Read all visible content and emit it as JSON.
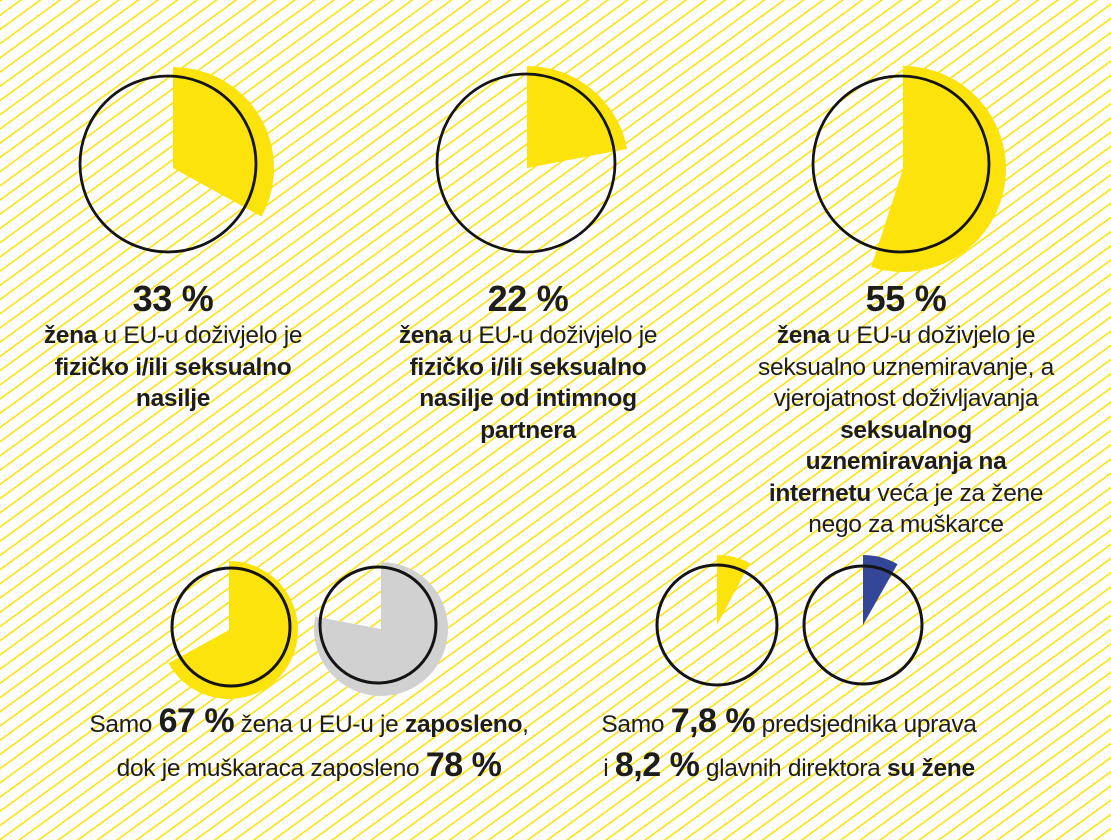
{
  "colors": {
    "yellow": "#FCE30B",
    "gray": "#D1D1D1",
    "blue": "#334697",
    "outline": "#141414",
    "stripe": "#FFE41C",
    "text": "#1D1D1B"
  },
  "chart_data": [
    {
      "id": "physical-sexual-violence",
      "type": "pie",
      "value_pct": 33,
      "rest_pct": 67,
      "color": "#FCE30B",
      "label": "33 % žena u EU-u doživjelo je fizičko i/ili seksualno nasilje"
    },
    {
      "id": "partner-violence",
      "type": "pie",
      "value_pct": 22,
      "rest_pct": 78,
      "color": "#FCE30B",
      "label": "22 % žena u EU-u doživjelo je fizičko i/ili seksualno nasilje od intimnog partnera"
    },
    {
      "id": "sexual-harassment",
      "type": "pie",
      "value_pct": 55,
      "rest_pct": 45,
      "color": "#FCE30B",
      "label": "55 % žena u EU-u doživjelo je seksualno uznemiravanje"
    },
    {
      "id": "employment-women",
      "type": "pie",
      "value_pct": 67,
      "rest_pct": 33,
      "color": "#FCE30B",
      "label": "Samo 67 % žena u EU-u je zaposleno"
    },
    {
      "id": "employment-men",
      "type": "pie",
      "value_pct": 78,
      "rest_pct": 22,
      "color": "#D1D1D1",
      "label": "Muškaraca je zaposleno 78 %"
    },
    {
      "id": "board-chairs-women",
      "type": "pie",
      "value_pct": 7.8,
      "rest_pct": 92.2,
      "color": "#FCE30B",
      "label": "Samo 7,8 % predsjednika uprava su žene"
    },
    {
      "id": "ceo-women",
      "type": "pie",
      "value_pct": 8.2,
      "rest_pct": 91.8,
      "color": "#334697",
      "label": "8,2 % glavnih direktora su žene"
    }
  ],
  "panels": {
    "top": [
      {
        "pct": "33 %",
        "lines": [
          [
            {
              "t": "žena",
              "b": true
            },
            {
              "t": " u EU-u doživjelo je"
            }
          ],
          [
            {
              "t": "fizičko i/ili seksualno",
              "b": true
            }
          ],
          [
            {
              "t": "nasilje",
              "b": true
            }
          ]
        ]
      },
      {
        "pct": "22 %",
        "lines": [
          [
            {
              "t": "žena",
              "b": true
            },
            {
              "t": " u EU-u doživjelo je"
            }
          ],
          [
            {
              "t": "fizičko i/ili seksualno",
              "b": true
            }
          ],
          [
            {
              "t": "nasilje od intimnog",
              "b": true
            }
          ],
          [
            {
              "t": "partnera",
              "b": true
            }
          ]
        ]
      },
      {
        "pct": "55 %",
        "lines": [
          [
            {
              "t": "žena",
              "b": true
            },
            {
              "t": " u EU-u doživjelo je"
            }
          ],
          [
            {
              "t": "seksualno uznemiravanje, a"
            }
          ],
          [
            {
              "t": "vjerojatnost doživljavanja"
            }
          ],
          [
            {
              "t": "seksualnog",
              "b": true
            }
          ],
          [
            {
              "t": "uznemiravanja na",
              "b": true
            }
          ],
          [
            {
              "t": "internetu",
              "b": true
            },
            {
              "t": " veća je za žene"
            }
          ],
          [
            {
              "t": "nego za muškarce"
            }
          ]
        ]
      }
    ],
    "bottom": [
      {
        "lines": [
          [
            {
              "t": "Samo "
            },
            {
              "t": "67 %",
              "big": true
            },
            {
              "t": " žena u EU-u je "
            },
            {
              "t": "zaposleno",
              "b": true
            },
            {
              "t": ","
            }
          ],
          [
            {
              "t": "dok je muškaraca zaposleno "
            },
            {
              "t": "78 %",
              "big": true
            }
          ]
        ]
      },
      {
        "lines": [
          [
            {
              "t": "Samo "
            },
            {
              "t": "7,8 %",
              "big": true
            },
            {
              "t": " predsjednika uprava"
            }
          ],
          [
            {
              "t": "i "
            },
            {
              "t": "8,2 %",
              "big": true
            },
            {
              "t": " glavnih direktora "
            },
            {
              "t": "su žene",
              "b": true
            }
          ]
        ]
      }
    ]
  }
}
